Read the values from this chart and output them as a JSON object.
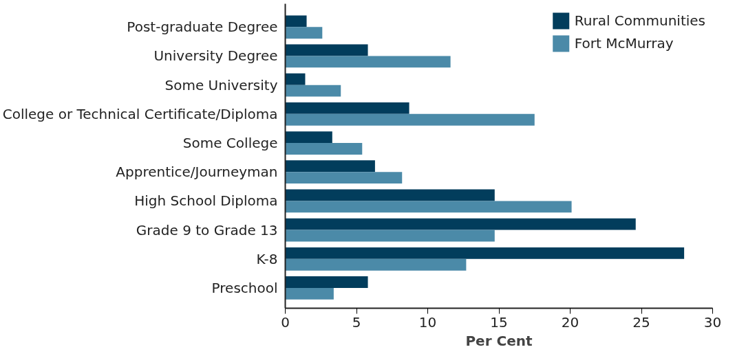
{
  "chart_data": {
    "type": "bar",
    "orientation": "horizontal",
    "xlabel": "Per Cent",
    "categories": [
      "Post-graduate Degree",
      "University Degree",
      "Some University",
      "College or Technical Certificate/Diploma",
      "Some College",
      "Apprentice/Journeyman",
      "High School Diploma",
      "Grade 9 to Grade 13",
      "K-8",
      "Preschool"
    ],
    "series": [
      {
        "name": "Rural Communities",
        "color": "#023d5c",
        "values": [
          1.5,
          5.8,
          1.4,
          8.7,
          3.3,
          6.3,
          14.7,
          24.6,
          28.0,
          5.8
        ]
      },
      {
        "name": "Fort McMurray",
        "color": "#4b8aa8",
        "values": [
          2.6,
          11.6,
          3.9,
          17.5,
          5.4,
          8.2,
          20.1,
          14.7,
          12.7,
          3.4
        ]
      }
    ],
    "xlim": [
      0,
      30
    ],
    "xticks": [
      0,
      5,
      10,
      15,
      20,
      25,
      30
    ],
    "grid": false,
    "legend": "top right"
  }
}
